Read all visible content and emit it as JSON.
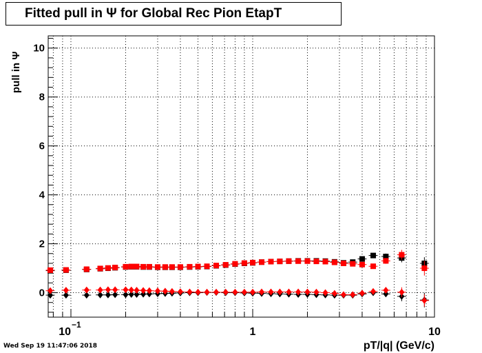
{
  "chart_data": {
    "type": "scatter",
    "title": "Fitted pull in  Ψ  for Global Rec Pion EtapT",
    "xlabel": "pT/|q| (GeV/c)",
    "ylabel": "pull in  Ψ",
    "x_scale": "log",
    "xlim": [
      0.075,
      10
    ],
    "ylim": [
      -1,
      10.5
    ],
    "grid": true,
    "x_ticks": [
      {
        "value": 0.1,
        "label": "10",
        "exp": "−1"
      },
      {
        "value": 1,
        "label": "1",
        "exp": ""
      },
      {
        "value": 10,
        "label": "10",
        "exp": ""
      }
    ],
    "y_ticks": [
      0,
      2,
      4,
      6,
      8,
      10
    ],
    "series": [
      {
        "marker": "square",
        "color": "#000000",
        "x": [
          0.077,
          0.094,
          0.122,
          0.145,
          0.16,
          0.175,
          0.2,
          0.215,
          0.23,
          0.25,
          0.27,
          0.3,
          0.33,
          0.36,
          0.4,
          0.45,
          0.5,
          0.56,
          0.63,
          0.71,
          0.8,
          0.9,
          1.0,
          1.12,
          1.26,
          1.41,
          1.58,
          1.78,
          2.0,
          2.24,
          2.51,
          2.82,
          3.16,
          3.55,
          4.0,
          4.6,
          5.4,
          6.6,
          8.8
        ],
        "y": [
          0.9,
          0.92,
          0.95,
          0.98,
          1.0,
          1.02,
          1.05,
          1.06,
          1.06,
          1.05,
          1.05,
          1.04,
          1.04,
          1.04,
          1.04,
          1.05,
          1.06,
          1.07,
          1.1,
          1.13,
          1.17,
          1.2,
          1.22,
          1.25,
          1.27,
          1.28,
          1.29,
          1.3,
          1.3,
          1.3,
          1.29,
          1.26,
          1.22,
          1.25,
          1.38,
          1.52,
          1.48,
          1.42,
          1.2
        ],
        "yerr": [
          0.04,
          0.03,
          0.03,
          0.03,
          0.03,
          0.03,
          0.03,
          0.03,
          0.03,
          0.03,
          0.03,
          0.03,
          0.03,
          0.03,
          0.03,
          0.03,
          0.03,
          0.03,
          0.03,
          0.03,
          0.03,
          0.03,
          0.03,
          0.03,
          0.03,
          0.03,
          0.03,
          0.03,
          0.03,
          0.03,
          0.03,
          0.04,
          0.04,
          0.05,
          0.06,
          0.08,
          0.12,
          0.18,
          0.25
        ]
      },
      {
        "marker": "square",
        "color": "#ff0000",
        "x": [
          0.077,
          0.094,
          0.122,
          0.145,
          0.16,
          0.175,
          0.2,
          0.215,
          0.23,
          0.25,
          0.27,
          0.3,
          0.33,
          0.36,
          0.4,
          0.45,
          0.5,
          0.56,
          0.63,
          0.71,
          0.8,
          0.9,
          1.0,
          1.12,
          1.26,
          1.41,
          1.58,
          1.78,
          2.0,
          2.24,
          2.51,
          2.82,
          3.16,
          3.55,
          4.0,
          4.6,
          5.4,
          6.6,
          8.8
        ],
        "y": [
          0.92,
          0.93,
          0.96,
          0.99,
          1.01,
          1.03,
          1.06,
          1.07,
          1.07,
          1.06,
          1.06,
          1.05,
          1.05,
          1.05,
          1.05,
          1.06,
          1.07,
          1.08,
          1.11,
          1.14,
          1.18,
          1.21,
          1.23,
          1.25,
          1.27,
          1.28,
          1.29,
          1.29,
          1.29,
          1.28,
          1.27,
          1.24,
          1.2,
          1.18,
          1.15,
          1.08,
          1.3,
          1.55,
          1.0
        ],
        "yerr": [
          0.04,
          0.03,
          0.03,
          0.03,
          0.03,
          0.03,
          0.03,
          0.03,
          0.03,
          0.03,
          0.03,
          0.03,
          0.03,
          0.03,
          0.03,
          0.03,
          0.03,
          0.03,
          0.03,
          0.03,
          0.03,
          0.03,
          0.03,
          0.03,
          0.03,
          0.03,
          0.03,
          0.03,
          0.03,
          0.03,
          0.03,
          0.04,
          0.04,
          0.05,
          0.06,
          0.08,
          0.12,
          0.2,
          0.3
        ]
      },
      {
        "marker": "diamond",
        "color": "#000000",
        "x": [
          0.077,
          0.094,
          0.122,
          0.145,
          0.16,
          0.175,
          0.2,
          0.215,
          0.23,
          0.25,
          0.27,
          0.3,
          0.33,
          0.36,
          0.4,
          0.45,
          0.5,
          0.56,
          0.63,
          0.71,
          0.8,
          0.9,
          1.0,
          1.12,
          1.26,
          1.41,
          1.58,
          1.78,
          2.0,
          2.24,
          2.51,
          2.82,
          3.16,
          3.55,
          4.0,
          4.6,
          5.4,
          6.6,
          8.8
        ],
        "y": [
          -0.1,
          -0.1,
          -0.1,
          -0.09,
          -0.09,
          -0.08,
          -0.08,
          -0.07,
          -0.07,
          -0.06,
          -0.05,
          -0.04,
          -0.03,
          -0.02,
          -0.01,
          0.0,
          0.0,
          0.01,
          0.01,
          0.0,
          0.0,
          -0.01,
          -0.02,
          -0.03,
          -0.04,
          -0.05,
          -0.06,
          -0.07,
          -0.07,
          -0.08,
          -0.09,
          -0.1,
          -0.1,
          -0.1,
          -0.05,
          0.0,
          -0.05,
          -0.15,
          -0.3
        ],
        "yerr": [
          0.04,
          0.03,
          0.03,
          0.03,
          0.03,
          0.03,
          0.03,
          0.03,
          0.03,
          0.03,
          0.03,
          0.03,
          0.03,
          0.03,
          0.03,
          0.03,
          0.03,
          0.03,
          0.03,
          0.03,
          0.03,
          0.03,
          0.03,
          0.03,
          0.03,
          0.03,
          0.03,
          0.03,
          0.03,
          0.03,
          0.03,
          0.04,
          0.04,
          0.05,
          0.06,
          0.08,
          0.12,
          0.2,
          0.3
        ]
      },
      {
        "marker": "diamond",
        "color": "#ff0000",
        "x": [
          0.077,
          0.094,
          0.122,
          0.145,
          0.16,
          0.175,
          0.2,
          0.215,
          0.23,
          0.25,
          0.27,
          0.3,
          0.33,
          0.36,
          0.4,
          0.45,
          0.5,
          0.56,
          0.63,
          0.71,
          0.8,
          0.9,
          1.0,
          1.12,
          1.26,
          1.41,
          1.58,
          1.78,
          2.0,
          2.24,
          2.51,
          2.82,
          3.16,
          3.55,
          4.0,
          4.6,
          5.4,
          6.6,
          8.8
        ],
        "y": [
          0.08,
          0.1,
          0.11,
          0.11,
          0.12,
          0.12,
          0.12,
          0.11,
          0.1,
          0.09,
          0.08,
          0.07,
          0.06,
          0.05,
          0.04,
          0.03,
          0.02,
          0.02,
          0.02,
          0.02,
          0.02,
          0.02,
          0.02,
          0.03,
          0.03,
          0.03,
          0.03,
          0.03,
          0.03,
          0.02,
          0.0,
          -0.03,
          -0.08,
          -0.08,
          -0.02,
          0.05,
          0.1,
          0.02,
          -0.32
        ],
        "yerr": [
          0.04,
          0.03,
          0.03,
          0.03,
          0.03,
          0.03,
          0.03,
          0.03,
          0.03,
          0.03,
          0.03,
          0.03,
          0.03,
          0.03,
          0.03,
          0.03,
          0.03,
          0.03,
          0.03,
          0.03,
          0.03,
          0.03,
          0.03,
          0.03,
          0.03,
          0.03,
          0.03,
          0.03,
          0.03,
          0.03,
          0.03,
          0.04,
          0.04,
          0.05,
          0.06,
          0.08,
          0.12,
          0.2,
          0.25
        ]
      }
    ]
  },
  "footer": {
    "datestamp": "Wed Sep 19 11:47:06 2018"
  }
}
